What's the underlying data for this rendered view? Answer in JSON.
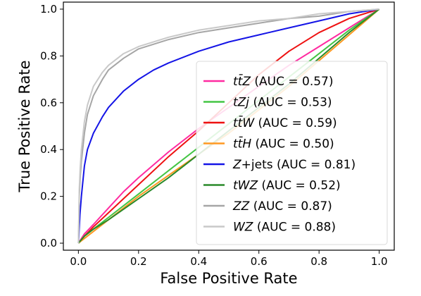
{
  "chart_data": {
    "type": "line",
    "title": "",
    "xlabel": "False Positive Rate",
    "ylabel": "True Positive Rate",
    "xlim": [
      -0.05,
      1.05
    ],
    "ylim": [
      -0.03,
      1.03
    ],
    "xticks": [
      "0.0",
      "0.2",
      "0.4",
      "0.6",
      "0.8",
      "1.0"
    ],
    "yticks": [
      "0.0",
      "0.2",
      "0.4",
      "0.6",
      "0.8",
      "1.0"
    ],
    "grid": false,
    "legend_position": "lower-right",
    "series": [
      {
        "name": "tt̄Z (AUC = 0.57)",
        "name_italic": "tt̄Z",
        "name_rest": " (AUC = 0.57)",
        "color": "#ff2aa0",
        "x": [
          0,
          0.02,
          0.05,
          0.1,
          0.15,
          0.2,
          0.3,
          0.4,
          0.5,
          0.6,
          0.7,
          0.8,
          0.9,
          0.95,
          1.0
        ],
        "y": [
          0,
          0.04,
          0.08,
          0.15,
          0.22,
          0.28,
          0.39,
          0.49,
          0.58,
          0.67,
          0.76,
          0.84,
          0.92,
          0.96,
          1.0
        ]
      },
      {
        "name": "tZj (AUC = 0.53)",
        "name_italic": "tZj",
        "name_rest": " (AUC = 0.53)",
        "color": "#44c544",
        "x": [
          0,
          0.02,
          0.05,
          0.1,
          0.2,
          0.3,
          0.4,
          0.5,
          0.6,
          0.7,
          0.8,
          0.9,
          1.0
        ],
        "y": [
          0,
          0.03,
          0.06,
          0.11,
          0.21,
          0.31,
          0.41,
          0.51,
          0.61,
          0.71,
          0.81,
          0.91,
          1.0
        ]
      },
      {
        "name": "tt̄W (AUC = 0.59)",
        "name_italic": "tt̄W",
        "name_rest": " (AUC = 0.59)",
        "color": "#ee1111",
        "x": [
          0,
          0.02,
          0.05,
          0.1,
          0.15,
          0.2,
          0.3,
          0.4,
          0.5,
          0.6,
          0.7,
          0.8,
          0.9,
          1.0
        ],
        "y": [
          0,
          0.03,
          0.07,
          0.13,
          0.19,
          0.25,
          0.37,
          0.48,
          0.6,
          0.72,
          0.82,
          0.9,
          0.96,
          1.0
        ]
      },
      {
        "name": "tt̄H (AUC = 0.50)",
        "name_italic": "tt̄H",
        "name_rest": " (AUC = 0.50)",
        "color": "#ff9922",
        "x": [
          0,
          0.05,
          0.1,
          0.2,
          0.3,
          0.4,
          0.5,
          0.6,
          0.7,
          0.8,
          0.9,
          1.0
        ],
        "y": [
          0,
          0.05,
          0.1,
          0.2,
          0.29,
          0.38,
          0.47,
          0.57,
          0.67,
          0.78,
          0.89,
          1.0
        ]
      },
      {
        "name": "Z+jets (AUC = 0.81)",
        "name_italic": "Z",
        "name_rest": "+jets (AUC = 0.81)",
        "color": "#1414e6",
        "x": [
          0,
          0.005,
          0.01,
          0.02,
          0.03,
          0.05,
          0.08,
          0.1,
          0.15,
          0.2,
          0.25,
          0.3,
          0.4,
          0.5,
          0.6,
          0.7,
          0.8,
          0.9,
          1.0
        ],
        "y": [
          0,
          0.12,
          0.2,
          0.33,
          0.4,
          0.47,
          0.54,
          0.58,
          0.65,
          0.7,
          0.74,
          0.77,
          0.82,
          0.86,
          0.89,
          0.92,
          0.95,
          0.98,
          1.0
        ]
      },
      {
        "name": "tWZ (AUC = 0.52)",
        "name_italic": "tWZ",
        "name_rest": " (AUC = 0.52)",
        "color": "#2a8a2a",
        "x": [
          0,
          0.02,
          0.05,
          0.1,
          0.2,
          0.3,
          0.4,
          0.5,
          0.6,
          0.7,
          0.8,
          0.9,
          1.0
        ],
        "y": [
          0,
          0.03,
          0.06,
          0.1,
          0.19,
          0.28,
          0.38,
          0.48,
          0.58,
          0.68,
          0.79,
          0.9,
          1.0
        ]
      },
      {
        "name": "ZZ (AUC = 0.87)",
        "name_italic": "ZZ",
        "name_rest": " (AUC = 0.87)",
        "color": "#a6a6a6",
        "x": [
          0,
          0.003,
          0.006,
          0.01,
          0.02,
          0.03,
          0.05,
          0.08,
          0.1,
          0.15,
          0.2,
          0.3,
          0.4,
          0.5,
          0.6,
          0.7,
          0.8,
          0.9,
          1.0
        ],
        "y": [
          0,
          0.2,
          0.28,
          0.35,
          0.47,
          0.55,
          0.63,
          0.7,
          0.74,
          0.79,
          0.83,
          0.87,
          0.9,
          0.92,
          0.94,
          0.96,
          0.97,
          0.99,
          1.0
        ]
      },
      {
        "name": "WZ (AUC = 0.88)",
        "name_italic": "WZ",
        "name_rest": " (AUC = 0.88)",
        "color": "#c9c9c9",
        "x": [
          0,
          0.003,
          0.006,
          0.01,
          0.02,
          0.03,
          0.05,
          0.08,
          0.1,
          0.15,
          0.2,
          0.3,
          0.4,
          0.5,
          0.6,
          0.7,
          0.8,
          0.9,
          1.0
        ],
        "y": [
          0,
          0.23,
          0.32,
          0.4,
          0.52,
          0.59,
          0.67,
          0.73,
          0.76,
          0.81,
          0.84,
          0.88,
          0.91,
          0.93,
          0.95,
          0.96,
          0.98,
          0.99,
          1.0
        ]
      }
    ]
  }
}
